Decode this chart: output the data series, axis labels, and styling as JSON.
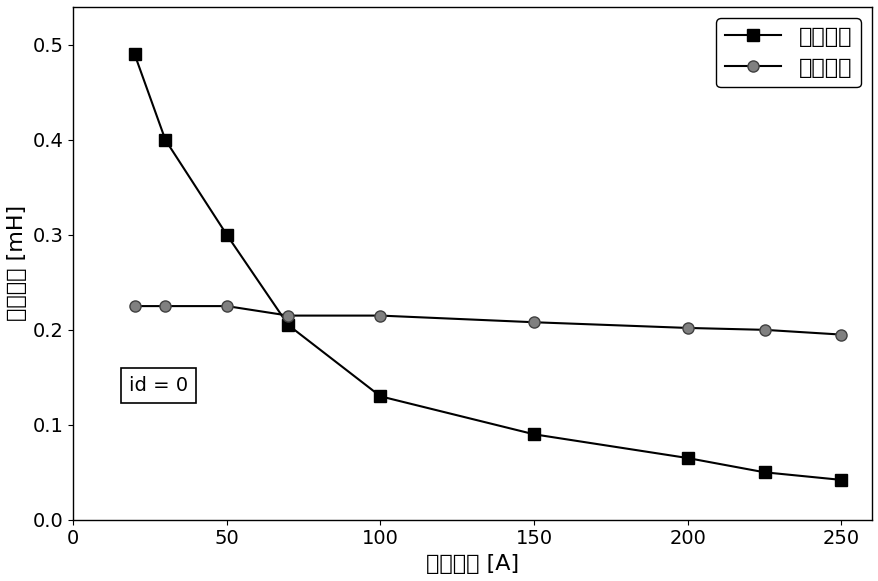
{
  "x_values": [
    20,
    30,
    50,
    70,
    100,
    150,
    200,
    225,
    250
  ],
  "ld_values": [
    0.49,
    0.4,
    0.3,
    0.205,
    0.13,
    0.09,
    0.065,
    0.05,
    0.042
  ],
  "lq_values": [
    0.225,
    0.225,
    0.225,
    0.215,
    0.215,
    0.208,
    0.202,
    0.2,
    0.195
  ],
  "xlabel": "电枢电流 [A]",
  "ylabel": "电感参数 [mH]",
  "legend_ld": "直轴电感",
  "legend_lq": "交轴电感",
  "annotation": "id = 0",
  "xlim": [
    0,
    260
  ],
  "ylim": [
    0.0,
    0.54
  ],
  "xticks": [
    0,
    50,
    100,
    150,
    200,
    250
  ],
  "yticks": [
    0.0,
    0.1,
    0.2,
    0.3,
    0.4,
    0.5
  ],
  "line_color": "#000000",
  "marker_square": "s",
  "marker_circle": "o",
  "markersize": 8,
  "linewidth": 1.5,
  "figsize": [
    8.79,
    5.81
  ],
  "dpi": 100,
  "legend_fontsize": 16,
  "label_fontsize": 16,
  "tick_fontsize": 14
}
